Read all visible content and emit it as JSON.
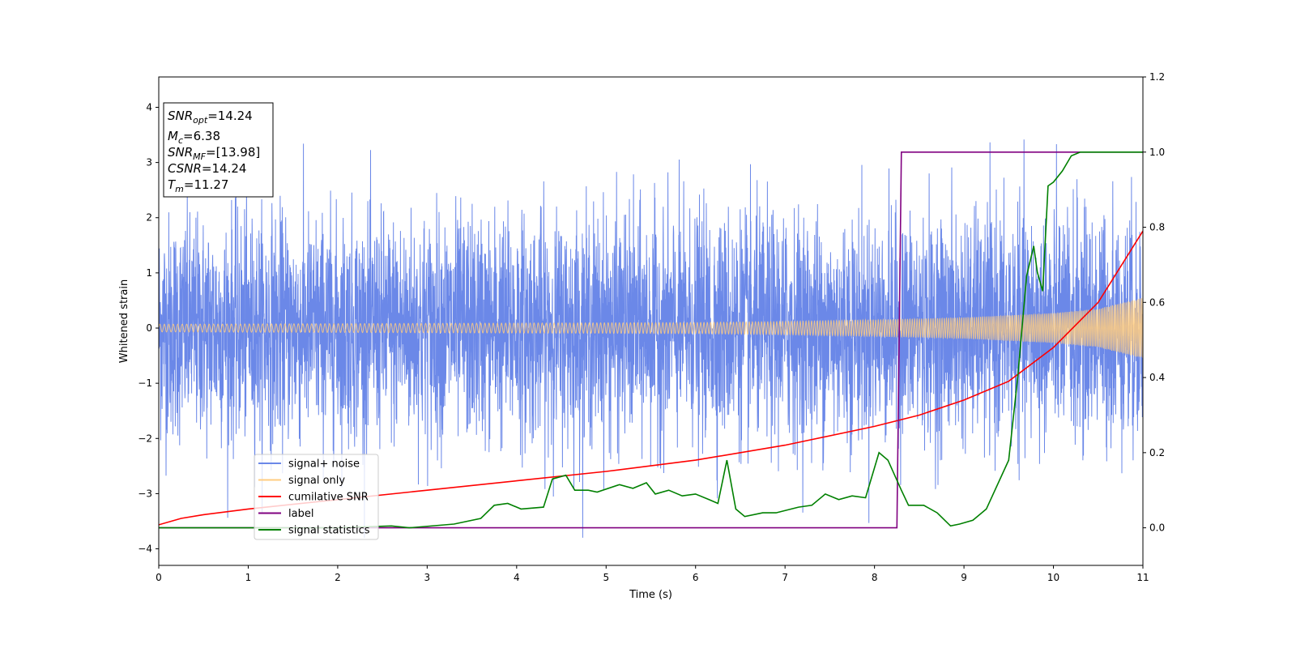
{
  "chart_data": {
    "type": "line",
    "xlabel": "Time (s)",
    "ylabel": "Whitened strain",
    "xlim": [
      0,
      11
    ],
    "ylim_left": [
      -4.3,
      4.55
    ],
    "ylim_right": [
      -0.1,
      1.2
    ],
    "x_ticks": [
      0,
      1,
      2,
      3,
      4,
      5,
      6,
      7,
      8,
      9,
      10,
      11
    ],
    "y_ticks_left": [
      -4,
      -3,
      -2,
      -1,
      0,
      1,
      2,
      3,
      4
    ],
    "y_ticks_right": [
      0.0,
      0.2,
      0.4,
      0.6,
      0.8,
      1.0,
      1.2
    ],
    "grid": false,
    "legend_position": "lower-left",
    "colors": {
      "signal_noise": "#6b88e8",
      "signal_only": "#ffcc80",
      "cumulative_snr": "#ff0000",
      "label": "#800080",
      "signal_statistics": "#008000"
    },
    "info_box": {
      "position": "top-left",
      "lines": [
        {
          "base": "SNR",
          "sub": "opt",
          "value": "=14.24"
        },
        {
          "base": "M",
          "sub": "c",
          "value": "=6.38"
        },
        {
          "base": "SNR",
          "sub": "MF",
          "value": "=[13.98]"
        },
        {
          "base": "CSNR",
          "sub": "",
          "value": "=14.24"
        },
        {
          "base": "T",
          "sub": "m",
          "value": "=11.27"
        }
      ]
    },
    "series": [
      {
        "name": "signal+ noise",
        "axis": "left",
        "description_values": {
          "noise_sigma": 1.0,
          "range": [
            -3.8,
            4.15
          ]
        }
      },
      {
        "name": "signal only",
        "axis": "left",
        "envelope": {
          "x": [
            0,
            2,
            4,
            6,
            7,
            8,
            9,
            10,
            10.5,
            11
          ],
          "amplitude": [
            0.07,
            0.08,
            0.09,
            0.1,
            0.12,
            0.15,
            0.19,
            0.27,
            0.35,
            0.55
          ]
        }
      },
      {
        "name": "cumilative SNR",
        "axis": "right",
        "x": [
          0,
          0.25,
          0.5,
          1,
          2,
          3,
          4,
          5,
          6,
          7,
          8,
          8.5,
          9,
          9.5,
          10,
          10.5,
          11
        ],
        "y": [
          0.008,
          0.025,
          0.035,
          0.05,
          0.075,
          0.1,
          0.125,
          0.15,
          0.18,
          0.22,
          0.27,
          0.3,
          0.34,
          0.39,
          0.48,
          0.6,
          0.79
        ]
      },
      {
        "name": "label",
        "axis": "right",
        "x": [
          0,
          8.25,
          8.3,
          11
        ],
        "y": [
          0,
          0,
          1,
          1
        ]
      },
      {
        "name": "signal statistics",
        "axis": "right",
        "x": [
          0,
          2,
          2.6,
          2.8,
          3.3,
          3.6,
          3.75,
          3.9,
          4.05,
          4.3,
          4.4,
          4.55,
          4.65,
          4.8,
          4.9,
          5.15,
          5.3,
          5.45,
          5.55,
          5.7,
          5.85,
          6.0,
          6.15,
          6.25,
          6.35,
          6.45,
          6.55,
          6.75,
          6.9,
          7.15,
          7.3,
          7.45,
          7.6,
          7.75,
          7.9,
          8.05,
          8.15,
          8.3,
          8.38,
          8.55,
          8.7,
          8.85,
          8.95,
          9.1,
          9.25,
          9.5,
          9.6,
          9.7,
          9.78,
          9.82,
          9.88,
          9.94,
          10.0,
          10.1,
          10.2,
          10.3,
          10.45,
          10.7,
          11
        ],
        "y": [
          0.0,
          0.0,
          0.005,
          0.0,
          0.01,
          0.025,
          0.06,
          0.065,
          0.05,
          0.055,
          0.13,
          0.14,
          0.1,
          0.1,
          0.095,
          0.115,
          0.105,
          0.12,
          0.09,
          0.1,
          0.085,
          0.09,
          0.075,
          0.065,
          0.18,
          0.05,
          0.03,
          0.04,
          0.04,
          0.055,
          0.06,
          0.09,
          0.075,
          0.085,
          0.08,
          0.2,
          0.18,
          0.1,
          0.06,
          0.06,
          0.04,
          0.005,
          0.01,
          0.02,
          0.05,
          0.18,
          0.4,
          0.67,
          0.75,
          0.68,
          0.63,
          0.91,
          0.92,
          0.95,
          0.99,
          1.0,
          1.0,
          1.0,
          1.0
        ]
      }
    ]
  }
}
